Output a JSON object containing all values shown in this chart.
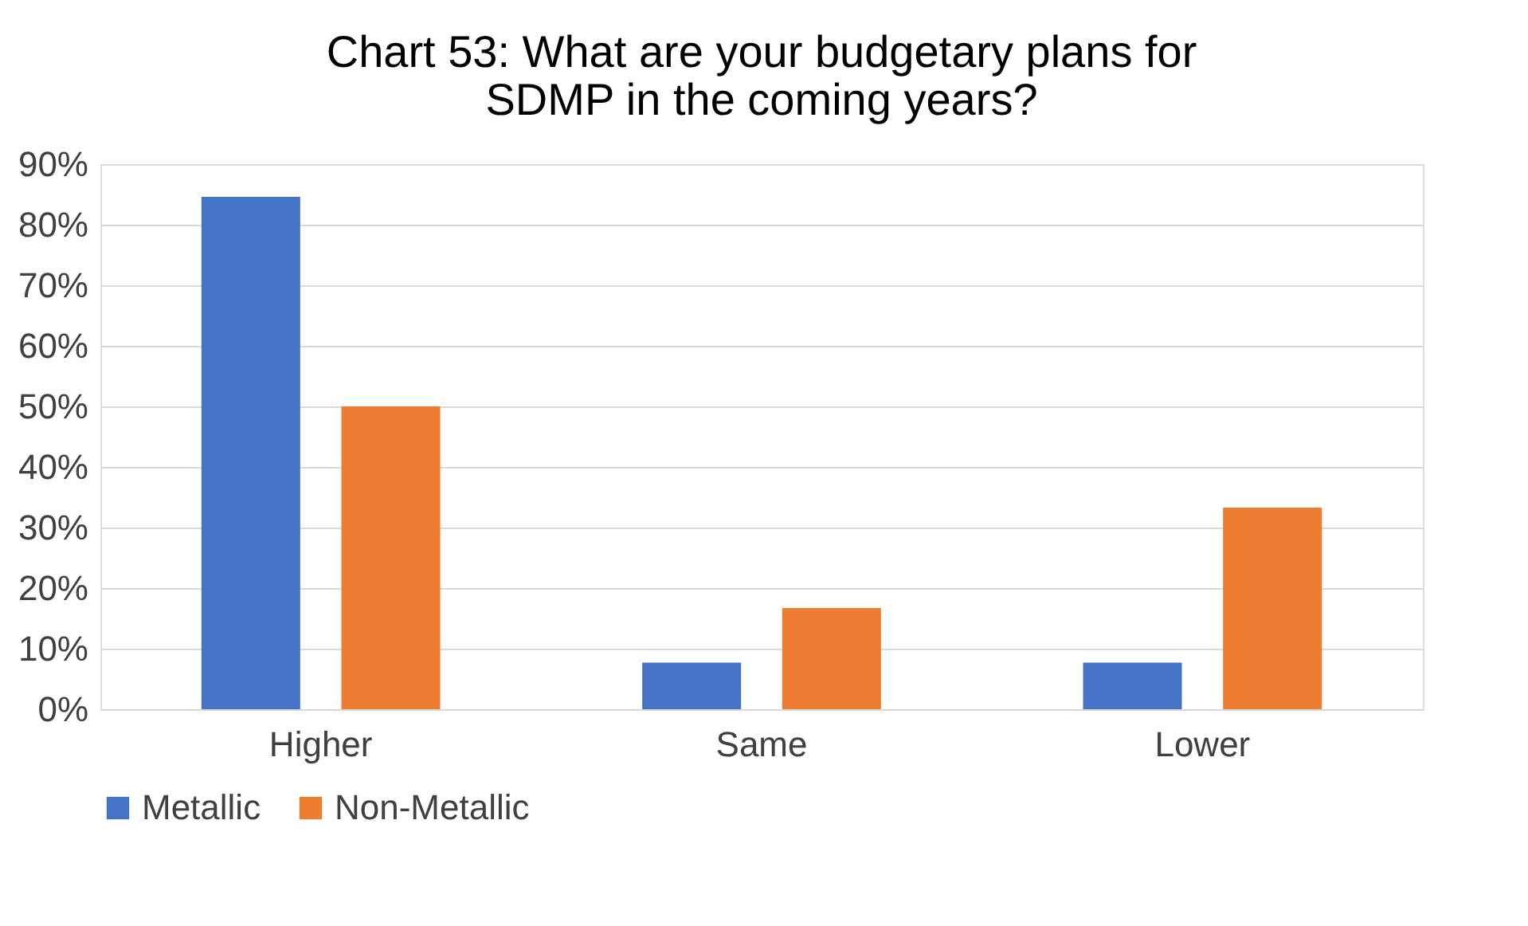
{
  "chart_data": {
    "type": "bar",
    "title": "Chart 53: What are your budgetary plans for\nSDMP in the coming years?",
    "categories": [
      "Higher",
      "Same",
      "Lower"
    ],
    "series": [
      {
        "name": "Metallic",
        "color": "#4472c4",
        "values": [
          84.6,
          7.7,
          7.7
        ]
      },
      {
        "name": "Non-Metallic",
        "color": "#ed7d31",
        "values": [
          50,
          16.7,
          33.3
        ]
      }
    ],
    "ylim": [
      0,
      90
    ],
    "yticks": [
      {
        "value": 0,
        "label": "0%"
      },
      {
        "value": 10,
        "label": "10%"
      },
      {
        "value": 20,
        "label": "20%"
      },
      {
        "value": 30,
        "label": "30%"
      },
      {
        "value": 40,
        "label": "40%"
      },
      {
        "value": 50,
        "label": "50%"
      },
      {
        "value": 60,
        "label": "60%"
      },
      {
        "value": 70,
        "label": "70%"
      },
      {
        "value": 80,
        "label": "80%"
      },
      {
        "value": 90,
        "label": "90%"
      }
    ],
    "grid": "y",
    "legend": "bottom"
  }
}
